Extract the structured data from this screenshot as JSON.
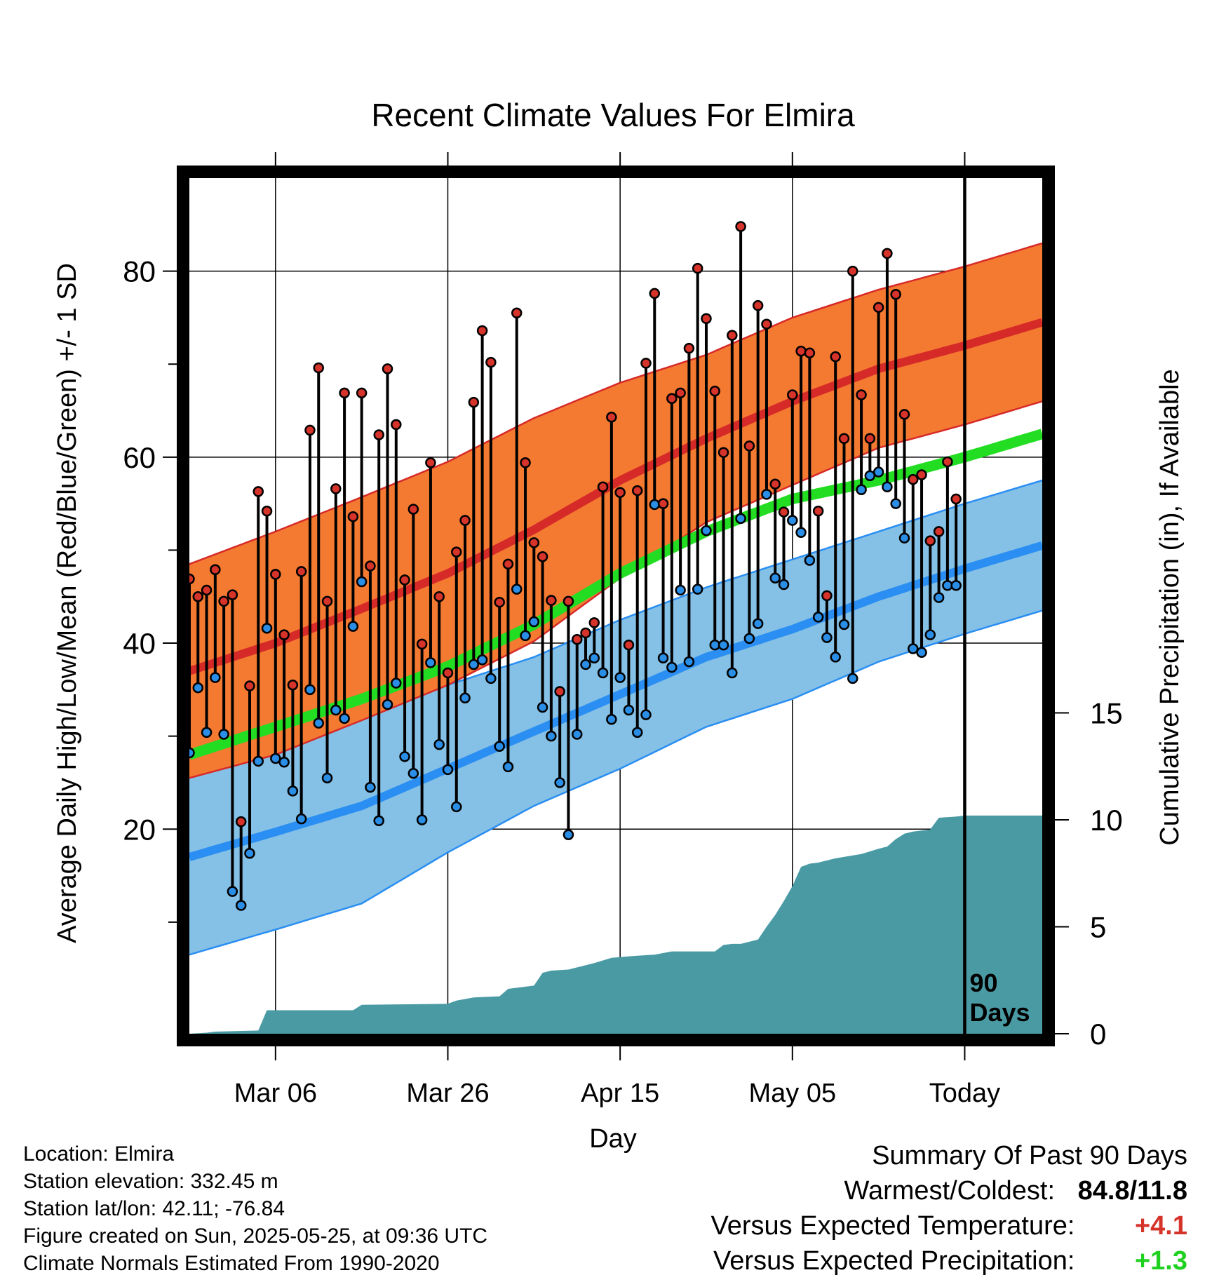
{
  "chart_data": {
    "type": "line",
    "title": "Recent Climate Values For Elmira",
    "xlabel": "Day",
    "ylabel": "Average Daily High/Low/Mean (Red/Blue/Green) +/- 1 SD",
    "y2label": "Cumulative Precipitation (in), If Available",
    "xlim": [
      0,
      99
    ],
    "ylim": [
      -2,
      90
    ],
    "y2lim": [
      0,
      40
    ],
    "xticks": [
      10,
      30,
      50,
      70,
      90
    ],
    "xticklabels": [
      "Mar 06",
      "Mar 26",
      "Apr 15",
      "May 05",
      "Today"
    ],
    "yticks": [
      20,
      40,
      60,
      80
    ],
    "yminor": [
      10,
      30,
      50,
      70
    ],
    "y2ticks": [
      0,
      5,
      10,
      15
    ],
    "today_label": [
      "90",
      "Days"
    ],
    "normals": {
      "x": [
        0,
        10,
        20,
        30,
        40,
        50,
        60,
        70,
        80,
        90,
        99
      ],
      "high_mean": [
        37,
        40,
        43.7,
        47.5,
        52.2,
        57.5,
        62,
        66,
        69.5,
        72,
        74.5
      ],
      "high_sd": [
        11.5,
        12,
        12,
        12,
        12,
        10.5,
        9,
        9,
        8.5,
        8.5,
        8.5
      ],
      "low_mean": [
        17,
        19.7,
        22.5,
        26.5,
        30.5,
        34.5,
        38.5,
        41.5,
        45,
        48,
        50.5
      ],
      "low_sd": [
        10.5,
        10.5,
        10.5,
        9,
        8,
        8,
        7.5,
        7.5,
        7,
        7,
        7
      ],
      "mean": [
        28,
        31,
        34,
        37.5,
        42,
        47.5,
        52,
        55.5,
        57.5,
        60,
        62.5
      ]
    },
    "series": [
      {
        "name": "Daily High",
        "color": "#d6332a",
        "values": [
          46.9,
          45,
          45.7,
          47.9,
          44.5,
          45.2,
          20.8,
          35.4,
          56.3,
          54.2,
          47.4,
          40.9,
          35.5,
          47.7,
          62.9,
          69.6,
          44.5,
          56.6,
          66.9,
          53.6,
          66.9,
          48.3,
          62.4,
          69.5,
          63.5,
          46.8,
          54.4,
          39.9,
          59.4,
          45,
          36.8,
          49.8,
          53.2,
          65.9,
          73.6,
          70.2,
          44.4,
          48.5,
          75.5,
          59.4,
          50.8,
          49.3,
          44.6,
          34.8,
          44.5,
          40.4,
          41.1,
          42.2,
          56.8,
          64.3,
          56.2,
          39.8,
          56.4,
          70.1,
          77.6,
          55,
          66.3,
          66.9,
          71.7,
          80.3,
          74.9,
          67.1,
          60.5,
          73.1,
          84.8,
          61.2,
          76.3,
          74.3,
          57.1,
          54.1,
          66.7,
          71.4,
          71.2,
          54.2,
          45.1,
          70.8,
          62,
          80,
          66.7,
          62,
          76.1,
          81.9,
          77.5,
          64.6,
          57.6,
          58.1,
          51,
          52,
          59.5,
          55.5
        ]
      },
      {
        "name": "Daily Low",
        "color": "#2a8ee6",
        "values": [
          28.2,
          35.2,
          30.4,
          36.3,
          30.2,
          13.3,
          11.8,
          17.4,
          27.3,
          41.6,
          27.6,
          27.2,
          24.1,
          21.1,
          35,
          31.4,
          25.5,
          32.8,
          31.9,
          41.8,
          46.6,
          24.5,
          20.9,
          33.4,
          35.7,
          27.8,
          26,
          21,
          37.9,
          29.1,
          26.4,
          22.4,
          34.1,
          37.7,
          38.2,
          36.2,
          28.9,
          26.7,
          45.8,
          40.8,
          42.3,
          33.1,
          30,
          25,
          19.4,
          30.2,
          37.7,
          38.4,
          36.8,
          31.8,
          36.3,
          32.8,
          30.4,
          32.3,
          54.9,
          38.4,
          37.4,
          45.7,
          38,
          45.8,
          52.1,
          39.8,
          39.8,
          36.8,
          53.4,
          40.5,
          42.1,
          56,
          47,
          46.3,
          53.2,
          51.9,
          48.9,
          42.8,
          40.6,
          38.5,
          42,
          36.2,
          56.5,
          58,
          58.4,
          56.8,
          55,
          51.3,
          39.4,
          39,
          40.9,
          44.9,
          46.2,
          46.2
        ]
      },
      {
        "name": "Cumulative Precipitation",
        "color": "#4a9aa4",
        "x": [
          0,
          2,
          3,
          8,
          9,
          19,
          20,
          30,
          31,
          33,
          36,
          37,
          39,
          40,
          41,
          42,
          44,
          47,
          49,
          52,
          54,
          56,
          57,
          61,
          62,
          63,
          64,
          66,
          67,
          68,
          69,
          70,
          71,
          72,
          73,
          75,
          78,
          80,
          81,
          82,
          83,
          84,
          85,
          86,
          87,
          89,
          90,
          99
        ],
        "values": [
          0,
          0.05,
          0.1,
          0.15,
          1.1,
          1.1,
          1.35,
          1.4,
          1.55,
          1.7,
          1.75,
          2.1,
          2.2,
          2.25,
          2.85,
          2.95,
          3,
          3.3,
          3.55,
          3.65,
          3.7,
          3.85,
          3.85,
          3.85,
          4.15,
          4.2,
          4.2,
          4.4,
          5,
          5.55,
          6.2,
          6.9,
          7.8,
          7.95,
          8,
          8.2,
          8.4,
          8.65,
          8.75,
          9.1,
          9.35,
          9.45,
          9.5,
          9.55,
          10.1,
          10.15,
          10.2,
          10.2
        ]
      }
    ]
  },
  "summary": {
    "heading": "Summary Of Past 90 Days",
    "warmest_coldest_label": "Warmest/Coldest:",
    "warmest_coldest_value": "84.8/11.8",
    "temp_label": "Versus Expected Temperature:",
    "temp_value": "+4.1",
    "precip_label": "Versus Expected Precipitation:",
    "precip_value": "+1.3"
  },
  "info": {
    "location": "Location: Elmira",
    "elevation": "Station elevation: 332.45 m",
    "latlon": "Station lat/lon: 42.11; -76.84",
    "created": "Figure created on Sun, 2025-05-25, at 09:36 UTC",
    "normals": "Climate Normals Estimated From 1990-2020"
  },
  "colors": {
    "high_band": "#f47a32",
    "high_line": "#d62a28",
    "low_band": "#85c1e6",
    "low_line": "#2a8ef2",
    "mean_line": "#22dd22",
    "precip_fill": "#4a9aa4"
  }
}
